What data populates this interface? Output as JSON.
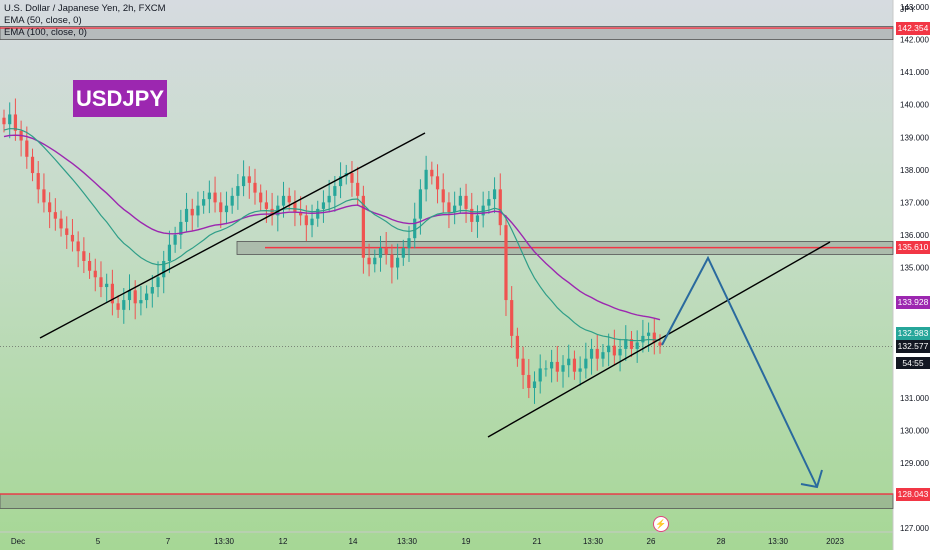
{
  "legend": {
    "symbol": "U.S. Dollar / Japanese Yen, 2h, FXCM",
    "ema50": "EMA (50, close, 0)",
    "ema100": "EMA (100, close, 0)"
  },
  "badge": "USDJPY",
  "currency": "JPY",
  "colors": {
    "bg_top": "#d2d9dd",
    "bg_bottom": "#a9d99b",
    "candle_up": "#26a69a",
    "candle_down": "#ef5350",
    "ema50": "#2f9e88",
    "ema100": "#9c27b0",
    "trendline": "#000000",
    "forecast": "#2a6a9e",
    "level": "#f23645",
    "zone": "#808080"
  },
  "chart_data": {
    "type": "candlestick",
    "y_ticks": [
      "143.000",
      "142.000",
      "141.000",
      "140.000",
      "139.000",
      "138.000",
      "137.000",
      "136.000",
      "135.000",
      "134.000",
      "133.000",
      "132.000",
      "131.000",
      "130.000",
      "129.000",
      "128.000",
      "127.000"
    ],
    "ylim": [
      126.9,
      143.5
    ],
    "x_ticks": [
      "Dec",
      "5",
      "7",
      "13:30",
      "12",
      "14",
      "13:30",
      "19",
      "21",
      "13:30",
      "26",
      "28",
      "13:30",
      "2023"
    ],
    "price_tags": [
      {
        "label": "142.354",
        "value": 142.354,
        "color": "#f23645"
      },
      {
        "label": "135.610",
        "value": 135.61,
        "color": "#f23645"
      },
      {
        "label": "133.928",
        "value": 133.928,
        "color": "#9c27b0"
      },
      {
        "label": "132.983",
        "value": 132.983,
        "color": "#26a69a"
      },
      {
        "label": "132.577",
        "value": 132.577,
        "color": "#131722"
      },
      {
        "label": "128.043",
        "value": 128.043,
        "color": "#f23645"
      }
    ],
    "countdown": "54:55",
    "horizontal_levels": [
      142.354,
      135.61,
      128.043
    ],
    "zones": [
      [
        142.0,
        142.4
      ],
      [
        135.4,
        135.8
      ],
      [
        127.6,
        128.05
      ]
    ],
    "ohlc_closes": [
      139.4,
      139.7,
      139.2,
      138.9,
      138.4,
      137.9,
      137.4,
      137.0,
      136.7,
      136.5,
      136.2,
      136.0,
      135.8,
      135.5,
      135.2,
      134.9,
      134.7,
      134.4,
      134.5,
      133.9,
      133.7,
      134.0,
      134.3,
      133.9,
      134.0,
      134.2,
      134.4,
      134.7,
      135.2,
      135.7,
      136.0,
      136.4,
      136.8,
      136.6,
      136.9,
      137.1,
      137.3,
      137.0,
      136.7,
      136.9,
      137.2,
      137.5,
      137.8,
      137.6,
      137.3,
      137.0,
      136.8,
      136.6,
      136.9,
      137.2,
      137.0,
      136.7,
      136.6,
      136.3,
      136.5,
      136.8,
      137.0,
      137.2,
      137.5,
      137.8,
      137.9,
      137.6,
      137.2,
      135.3,
      135.1,
      135.3,
      135.6,
      135.4,
      135.0,
      135.3,
      135.6,
      135.9,
      136.5,
      137.4,
      138.0,
      137.8,
      137.4,
      137.0,
      136.7,
      136.9,
      137.2,
      136.8,
      136.4,
      136.6,
      136.9,
      137.1,
      137.4,
      136.3,
      134.0,
      132.9,
      132.2,
      131.7,
      131.3,
      131.5,
      131.9,
      131.9,
      132.1,
      131.8,
      132.0,
      132.2,
      131.8,
      131.9,
      132.2,
      132.5,
      132.2,
      132.4,
      132.6,
      132.3,
      132.5,
      132.8,
      132.5,
      132.7,
      132.9,
      133.0,
      132.7,
      132.6
    ],
    "forecast_path": [
      [
        662,
        345
      ],
      [
        708,
        258
      ],
      [
        817,
        487
      ]
    ],
    "trendlines": [
      [
        [
          40,
          338
        ],
        [
          425,
          133
        ]
      ],
      [
        [
          488,
          437
        ],
        [
          830,
          242
        ]
      ]
    ]
  }
}
